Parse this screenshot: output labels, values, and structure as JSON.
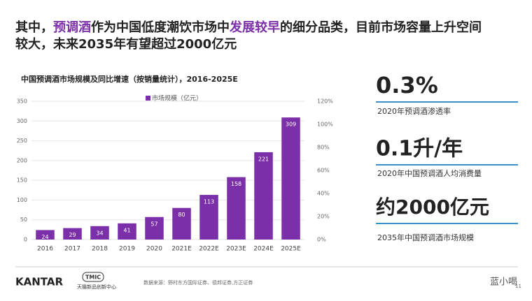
{
  "headline": [
    "其中，",
    "预调酒",
    "作为中国低度潮饮市场中",
    "发展较早",
    "的细分品类，目前市场容量上升空间",
    "较大，未来2035年有望超过2000亿元"
  ],
  "chart_data": {
    "type": "bar",
    "title": "中国预调酒市场规模及同比增速（按销量统计），2016-2025E",
    "categories": [
      "2016",
      "2017",
      "2018",
      "2019",
      "2020",
      "2021E",
      "2022E",
      "2023E",
      "2024E",
      "2025E"
    ],
    "series": [
      {
        "name": "市场规模（亿元）",
        "color": "#7b2fa8",
        "values": [
          24,
          29,
          34,
          41,
          57,
          80,
          113,
          158,
          221,
          309
        ]
      }
    ],
    "ylim": [
      0,
      350
    ],
    "yticks": [
      0,
      50,
      100,
      150,
      200,
      250,
      300,
      350
    ],
    "y2lim": [
      0,
      120
    ],
    "y2ticks": [
      {
        "value": 0,
        "label": "0%"
      },
      {
        "value": 20,
        "label": "20%"
      },
      {
        "value": 40,
        "label": "40%"
      },
      {
        "value": 60,
        "label": "60%"
      },
      {
        "value": 80,
        "label": "80%"
      },
      {
        "value": 100,
        "label": "100%"
      },
      {
        "value": 120,
        "label": "120%"
      }
    ],
    "grid": true,
    "legend": "top"
  },
  "stats": [
    {
      "value": "0.3%",
      "label": "2020年预调酒渗透率"
    },
    {
      "value": "0.1升/年",
      "label": "2020年中国预调酒人均消费量"
    },
    {
      "value": "约2000亿元",
      "label": "2035年中国预调酒市场规模"
    }
  ],
  "footer": {
    "brand": "KANTAR",
    "logo": "TMIC",
    "logo_sub": "天猫新品创新中心",
    "source": "数据来源：野村东方国际证券、德邦证券,方正证券",
    "page": "11",
    "watermark": "蓝小喝"
  }
}
